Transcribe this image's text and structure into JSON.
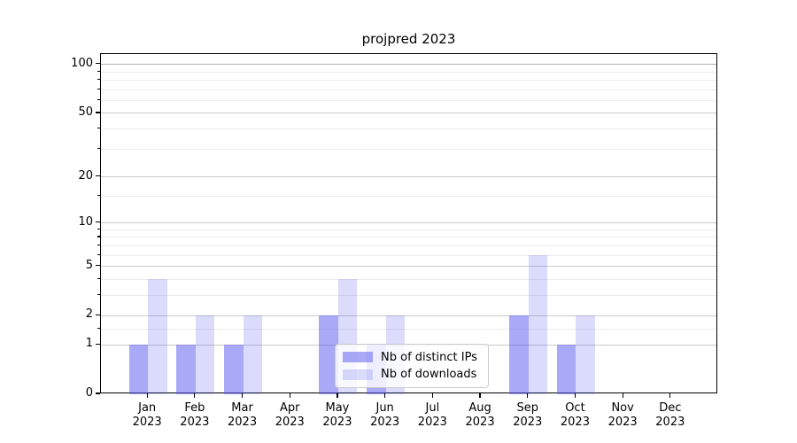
{
  "title": "projpred 2023",
  "chart_data": {
    "type": "bar",
    "title": "projpred 2023",
    "categories": [
      "Jan 2023",
      "Feb 2023",
      "Mar 2023",
      "Apr 2023",
      "May 2023",
      "Jun 2023",
      "Jul 2023",
      "Aug 2023",
      "Sep 2023",
      "Oct 2023",
      "Nov 2023",
      "Dec 2023"
    ],
    "series": [
      {
        "name": "Nb of distinct IPs",
        "color": "rgba(90,90,240,0.52)",
        "values": [
          1,
          1,
          1,
          0,
          2,
          1,
          0,
          0,
          2,
          1,
          0,
          0
        ]
      },
      {
        "name": "Nb of downloads",
        "color": "rgba(90,90,240,0.22)",
        "values": [
          4,
          2,
          2,
          0,
          4,
          2,
          0,
          0,
          6,
          2,
          0,
          0
        ]
      }
    ],
    "xlabel": "",
    "ylabel": "",
    "yscale": "log1p",
    "yticks": [
      0,
      1,
      2,
      5,
      10,
      20,
      50,
      100
    ],
    "minor_yticks": [
      1.5,
      3,
      4,
      6,
      7,
      8,
      9,
      15,
      30,
      40,
      60,
      70,
      80,
      90
    ],
    "ylim": [
      0,
      115
    ],
    "grid": true,
    "legend_position": "lower center inside"
  },
  "colors": {
    "bar_dark": "rgba(90,90,240,0.52)",
    "bar_light": "rgba(90,90,240,0.22)",
    "grid_major": "#c9c9c9",
    "grid_top": "#b3b3b3",
    "grid_minor": "#ececec",
    "axis": "#000000",
    "background": "#ffffff"
  }
}
